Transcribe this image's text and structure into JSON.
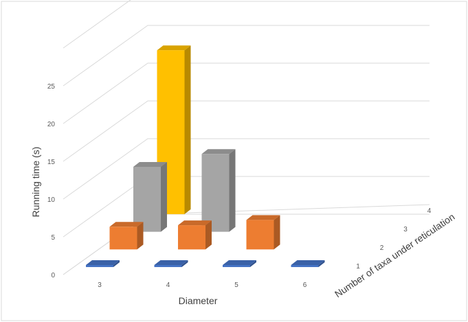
{
  "chart_data": {
    "type": "bar",
    "subtype": "3d-column",
    "title": "",
    "xlabel": "Diameter",
    "ylabel": "Running time (s)",
    "zlabel": "Number of taxa under reticulation",
    "categories": [
      "3",
      "4",
      "5",
      "6"
    ],
    "depth_categories": [
      "1",
      "2",
      "3",
      "4"
    ],
    "ylim": [
      0,
      25
    ],
    "yticks": [
      "0",
      "5",
      "10",
      "15",
      "20",
      "25"
    ],
    "grid": true,
    "legend": "none",
    "series": [
      {
        "depth": "1",
        "color": "#4472c4",
        "values": [
          0.1,
          0.15,
          0.15,
          0.2
        ]
      },
      {
        "depth": "2",
        "color": "#ed7d31",
        "values": [
          3,
          3.2,
          3.9,
          null
        ]
      },
      {
        "depth": "3",
        "color": "#a5a5a5",
        "values": [
          8.6,
          10.3,
          null,
          null
        ]
      },
      {
        "depth": "4",
        "color": "#ffc000",
        "values": [
          21.7,
          null,
          null,
          null
        ]
      }
    ]
  }
}
